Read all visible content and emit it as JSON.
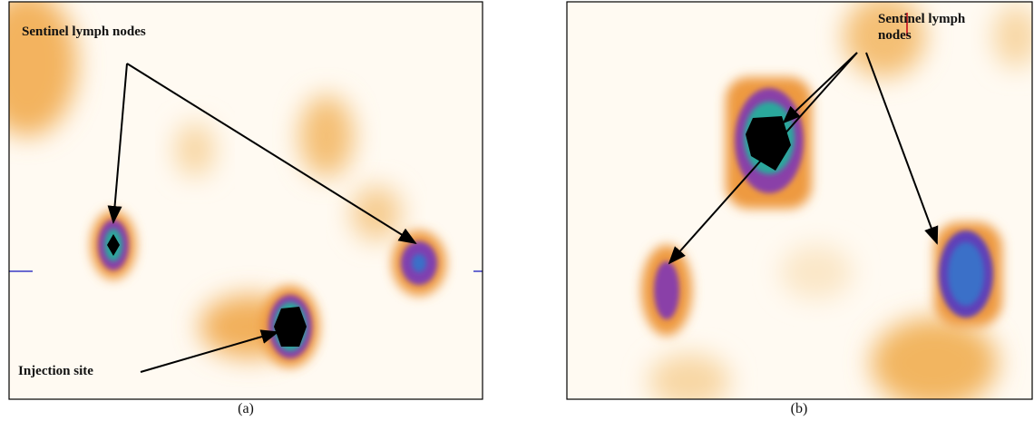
{
  "panels": [
    {
      "label": "(a)",
      "annotations": [
        "Sentinel lymph nodes",
        "Injection site"
      ]
    },
    {
      "label": "(b)",
      "annotations": [
        "Sentinel lymph nodes"
      ]
    }
  ]
}
